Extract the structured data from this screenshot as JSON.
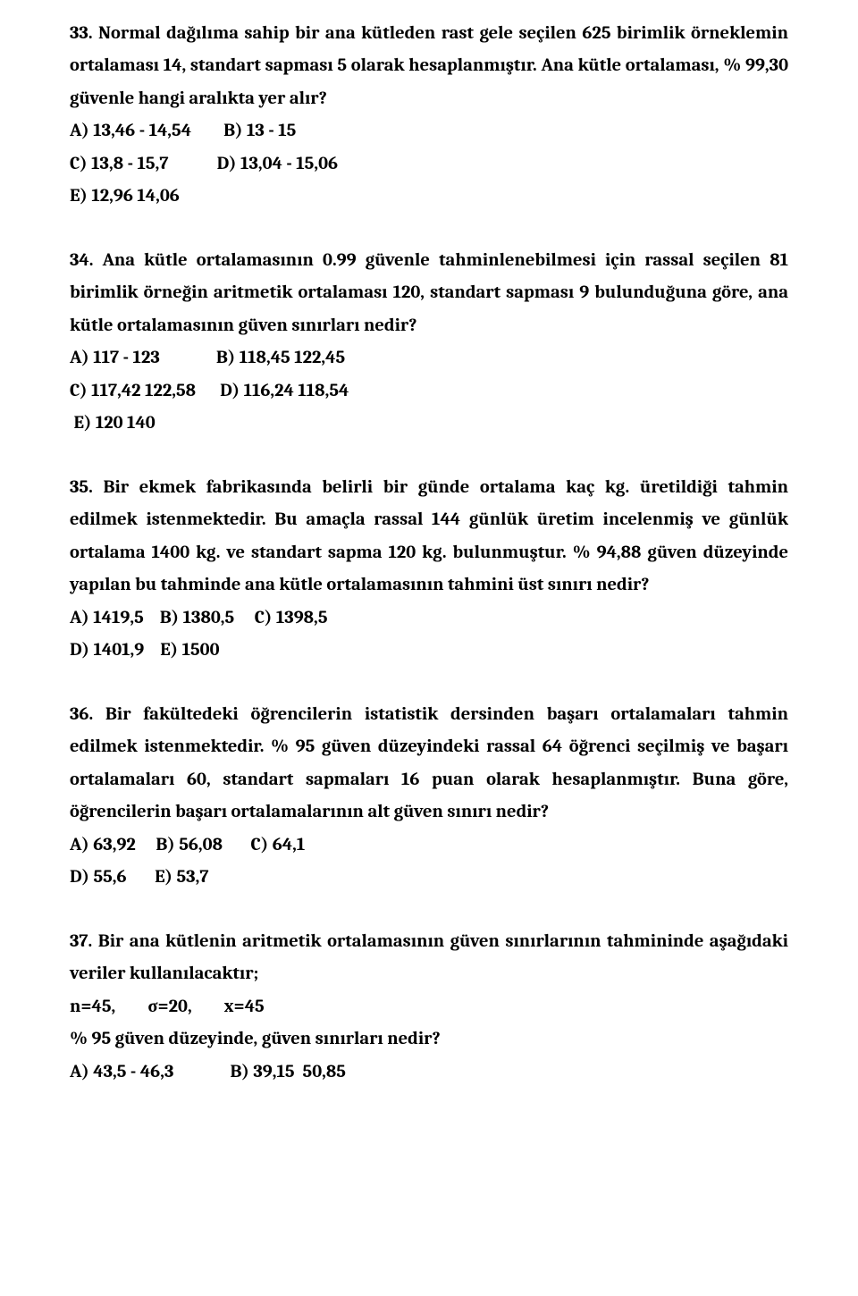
{
  "q33": {
    "text1": "33. Normal dağılıma sahip bir ana kütleden rast gele seçilen 625 birimlik örneklemin ortalaması 14, standart sapması 5 olarak hesaplanmıştır. Ana kütle ortalaması, % 99,30 güvenle hangi aralıkta yer alır?",
    "ans1": "A) 13,46 - 14,54        B) 13 - 15",
    "ans2": "C) 13,8 - 15,7            D) 13,04 - 15,06",
    "ans3": "E) 12,96 14,06"
  },
  "q34": {
    "text1": "34. Ana kütle ortalamasının 0.99 güvenle tahminlenebilmesi için rassal seçilen 81 birimlik örneğin aritmetik ortalaması 120, standart sapması 9 bulunduğuna göre, ana kütle ortalamasının güven sınırları nedir?",
    "ans1": "A) 117 - 123              B) 118,45 122,45",
    "ans2": "C) 117,42 122,58      D) 116,24 118,54",
    "ans3": " E) 120 140"
  },
  "q35": {
    "text1": "35. Bir ekmek fabrikasında belirli bir günde ortalama kaç kg. üretildiği tahmin edilmek istenmektedir. Bu amaçla rassal 144 günlük üretim incelenmiş ve günlük ortalama 1400 kg. ve standart sapma 120 kg. bulunmuştur. % 94,88 güven düzeyinde yapılan bu tahminde ana kütle ortalamasının tahmini üst sınırı nedir?",
    "ans1": "A) 1419,5    B) 1380,5     C) 1398,5",
    "ans2": "D) 1401,9    E) 1500"
  },
  "q36": {
    "text1": "36. Bir fakültedeki öğrencilerin istatistik dersinden başarı ortalamaları tahmin edilmek istenmektedir. % 95 güven düzeyindeki rassal 64 öğrenci seçilmiş ve başarı ortalamaları 60, standart sapmaları 16 puan olarak hesaplanmıştır. Buna göre, öğrencilerin başarı ortalamalarının alt güven sınırı nedir?",
    "ans1": "A) 63,92     B) 56,08       C) 64,1",
    "ans2": "D) 55,6       E) 53,7"
  },
  "q37": {
    "text1": "37. Bir ana kütlenin aritmetik ortalamasının güven sınırlarının tahmininde aşağıdaki veriler kullanılacaktır;",
    "line2": "n=45,        σ=20,        x=45",
    "line3": "% 95 güven düzeyinde, güven sınırları nedir?",
    "ans1": "A) 43,5 - 46,3              B) 39,15  50,85"
  }
}
